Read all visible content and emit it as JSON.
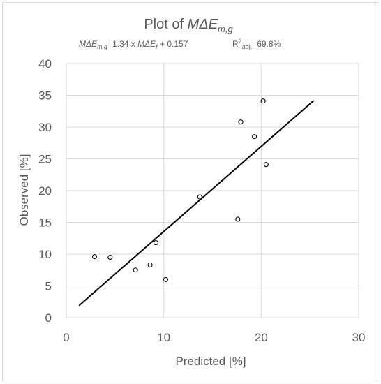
{
  "chart_data": {
    "type": "scatter",
    "title": {
      "prefix": "Plot of ",
      "symbol": "MΔE",
      "subscript": "m,g"
    },
    "equation": {
      "lhs_symbol": "MΔE",
      "lhs_sub": "m,g",
      "middle": "=1.34 x ",
      "rhs_symbol": "MΔE",
      "rhs_sub": "f",
      "tail": " + 0.157"
    },
    "r2": {
      "prefix": "R",
      "sup": "2",
      "sub": "adj.",
      "value": "=69.8%"
    },
    "xlabel": "Predicted [%]",
    "ylabel": "Observed [%]",
    "xlim": [
      0,
      30
    ],
    "ylim": [
      0,
      40
    ],
    "xticks": [
      "0",
      "10",
      "20",
      "30"
    ],
    "yticks": [
      "0",
      "5",
      "10",
      "15",
      "20",
      "25",
      "30",
      "35",
      "40"
    ],
    "grid": true,
    "points": [
      {
        "x": 2.9,
        "y": 9.6
      },
      {
        "x": 4.5,
        "y": 9.5
      },
      {
        "x": 7.1,
        "y": 7.5
      },
      {
        "x": 8.6,
        "y": 8.3
      },
      {
        "x": 9.2,
        "y": 11.8
      },
      {
        "x": 10.2,
        "y": 6.0
      },
      {
        "x": 13.7,
        "y": 19.0
      },
      {
        "x": 17.6,
        "y": 15.5
      },
      {
        "x": 17.9,
        "y": 30.8
      },
      {
        "x": 19.3,
        "y": 28.5
      },
      {
        "x": 20.2,
        "y": 34.1
      },
      {
        "x": 20.5,
        "y": 24.1
      }
    ],
    "fit_line": {
      "slope": 1.34,
      "intercept": 0.157,
      "x_range": [
        1.3,
        25.4
      ]
    },
    "colors": {
      "marker": "#000000",
      "fit": "#000000",
      "grid": "#d9d9d9",
      "text": "#595959"
    }
  }
}
